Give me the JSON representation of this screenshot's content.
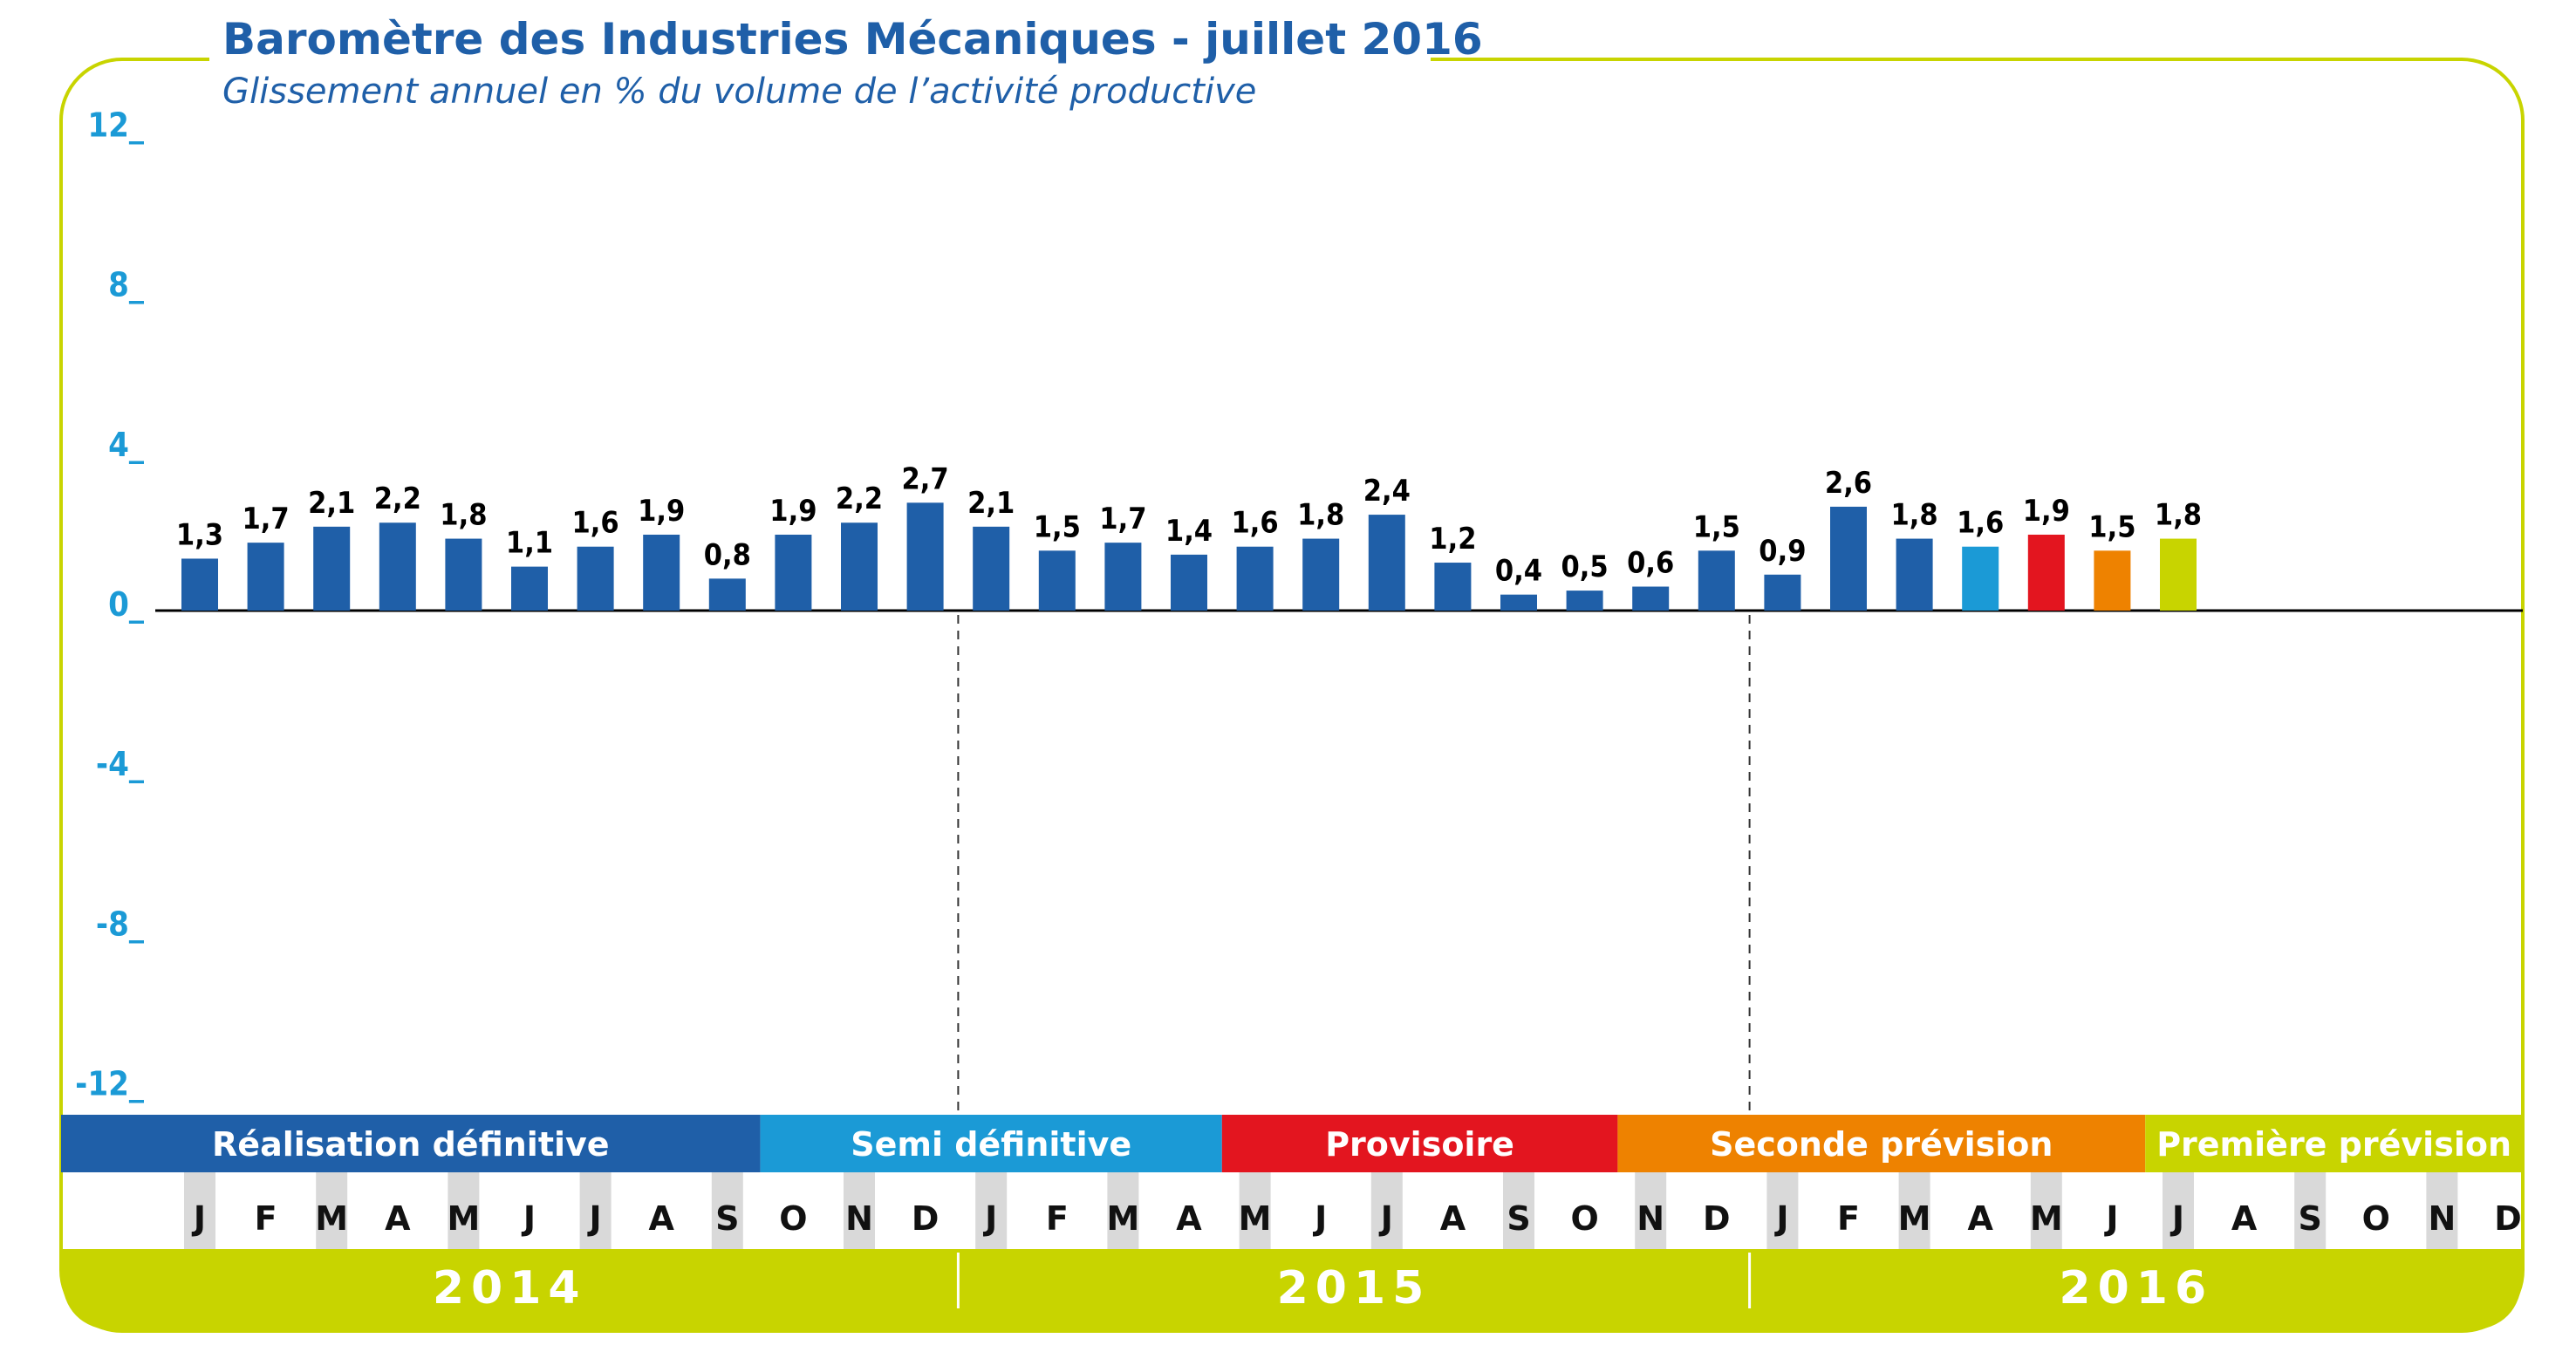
{
  "title": "Baromètre des Industries Mécaniques - juillet 2016",
  "subtitle": "Glissement annuel en % du volume de l’activité productive",
  "colors": {
    "title": "#1f5fa8",
    "axis_text": "#1b9ad6",
    "frame": "#c8d400",
    "bar_default": "#1f5fa8",
    "month_stripe": "#d9d9d9",
    "year_band": "#c8d400",
    "year_text": "#ffffff"
  },
  "segments": [
    {
      "label": "Réalisation définitive",
      "color": "#1f5fa8",
      "start": 0,
      "end": 9
    },
    {
      "label": "Semi définitive",
      "color": "#1b9ad6",
      "start": 9,
      "end": 16
    },
    {
      "label": "Provisoire",
      "color": "#e3151f",
      "start": 16,
      "end": 22
    },
    {
      "label": "Seconde prévision",
      "color": "#ee8200",
      "start": 22,
      "end": 30
    },
    {
      "label": "Première prévision",
      "color": "#c8d400",
      "start": 30,
      "end": 36
    }
  ],
  "years": [
    "2014",
    "2015",
    "2016"
  ],
  "chart_data": {
    "type": "bar",
    "title": "Baromètre des Industries Mécaniques - juillet 2016",
    "subtitle": "Glissement annuel en % du volume de l’activité productive",
    "ylim": [
      -12,
      12
    ],
    "yticks": [
      "12_",
      "8_",
      "4_",
      "0_",
      "-4_",
      "-8_",
      "-12_"
    ],
    "ytick_values": [
      12,
      8,
      4,
      0,
      -4,
      -8,
      -12
    ],
    "categories": [
      "J",
      "F",
      "M",
      "A",
      "M",
      "J",
      "J",
      "A",
      "S",
      "O",
      "N",
      "D",
      "J",
      "F",
      "M",
      "A",
      "M",
      "J",
      "J",
      "A",
      "S",
      "O",
      "N",
      "D",
      "J",
      "F",
      "M",
      "A",
      "M",
      "J",
      "J",
      "A",
      "S",
      "O",
      "N",
      "D"
    ],
    "values": [
      1.3,
      1.7,
      2.1,
      2.2,
      1.8,
      1.1,
      1.6,
      1.9,
      0.8,
      1.9,
      2.2,
      2.7,
      2.1,
      1.5,
      1.7,
      1.4,
      1.6,
      1.8,
      2.4,
      1.2,
      0.4,
      0.5,
      0.6,
      1.5,
      0.9,
      2.6,
      1.8,
      1.6,
      1.9,
      1.5,
      1.8,
      null,
      null,
      null,
      null,
      null
    ],
    "value_labels": [
      "1,3",
      "1,7",
      "2,1",
      "2,2",
      "1,8",
      "1,1",
      "1,6",
      "1,9",
      "0,8",
      "1,9",
      "2,2",
      "2,7",
      "2,1",
      "1,5",
      "1,7",
      "1,4",
      "1,6",
      "1,8",
      "2,4",
      "1,2",
      "0,4",
      "0,5",
      "0,6",
      "1,5",
      "0,9",
      "2,6",
      "1,8",
      "1,6",
      "1,9",
      "1,5",
      "1,8",
      "",
      "",
      "",
      "",
      ""
    ],
    "bar_colors": {
      "27": "#1b9ad6",
      "28": "#e3151f",
      "29": "#ee8200",
      "30": "#c8d400"
    },
    "grid": false,
    "legend": "bottom"
  }
}
